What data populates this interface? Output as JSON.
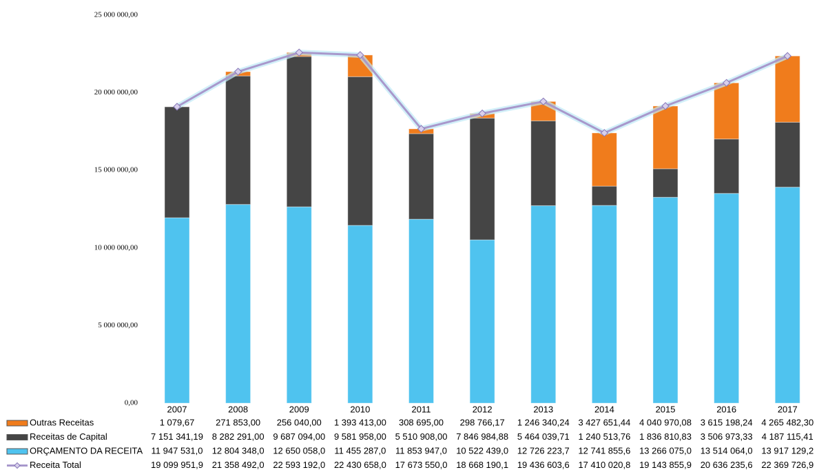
{
  "chart_data": {
    "type": "bar",
    "stacked": true,
    "categories": [
      "2007",
      "2008",
      "2009",
      "2010",
      "2011",
      "2012",
      "2013",
      "2014",
      "2015",
      "2016",
      "2017"
    ],
    "series": [
      {
        "name": "Outras Receitas",
        "color": "#f07c1c",
        "values": [
          1079.67,
          271853.0,
          256040.0,
          1393413.0,
          308695.0,
          298766.17,
          1246340.24,
          3427651.44,
          4040970.08,
          3615198.24,
          4265482.3
        ],
        "value_labels": [
          "1 079,67",
          "271 853,00",
          "256 040,00",
          "1 393 413,00",
          "308 695,00",
          "298 766,17",
          "1 246 340,24",
          "3 427 651,44",
          "4 040 970,08",
          "3 615 198,24",
          "4 265 482,30"
        ]
      },
      {
        "name": "Receitas de Capital",
        "color": "#454545",
        "values": [
          7151341.19,
          8282291.0,
          9687094.0,
          9581958.0,
          5510908.0,
          7846984.88,
          5464039.71,
          1240513.76,
          1836810.83,
          3506973.33,
          4187115.41
        ],
        "value_labels": [
          "7 151 341,19",
          "8 282 291,00",
          "9 687 094,00",
          "9 581 958,00",
          "5 510 908,00",
          "7 846 984,88",
          "5 464 039,71",
          "1 240 513,76",
          "1 836 810,83",
          "3 506 973,33",
          "4 187 115,41"
        ]
      },
      {
        "name": "ORÇAMENTO DA RECEITA",
        "color": "#4fc3ef",
        "values": [
          11947531.0,
          12804348.0,
          12650058.0,
          11455287.0,
          11853947.0,
          10522439.0,
          12726223.7,
          12741855.6,
          13266075.0,
          13514064.0,
          13917129.2
        ],
        "value_labels": [
          "11 947 531,0",
          "12 804 348,0",
          "12 650 058,0",
          "11 455 287,0",
          "11 853 947,0",
          "10 522 439,0",
          "12 726 223,7",
          "12 741 855,6",
          "13 266 075,0",
          "13 514 064,0",
          "13 917 129,2"
        ]
      },
      {
        "name": "Receita Total",
        "color": "#a898cc",
        "type": "line",
        "values": [
          19099951.9,
          21358492.0,
          22593192.0,
          22430658.0,
          17673550.0,
          18668190.1,
          19436603.6,
          17410020.8,
          19143855.9,
          20636235.6,
          22369726.9
        ],
        "value_labels": [
          "19 099 951,9",
          "21 358 492,0",
          "22 593 192,0",
          "22 430 658,0",
          "17 673 550,0",
          "18 668 190,1",
          "19 436 603,6",
          "17 410 020,8",
          "19 143 855,9",
          "20 636 235,6",
          "22 369 726,9"
        ]
      }
    ],
    "ylim": [
      0,
      25000000
    ],
    "yticks": [
      {
        "value": 0,
        "label": "0,00"
      },
      {
        "value": 5000000,
        "label": "5 000 000,00"
      },
      {
        "value": 10000000,
        "label": "10 000 000,00"
      },
      {
        "value": 15000000,
        "label": "15 000 000,00"
      },
      {
        "value": 20000000,
        "label": "20 000 000,00"
      },
      {
        "value": 25000000,
        "label": "25 000 000,00"
      }
    ]
  }
}
